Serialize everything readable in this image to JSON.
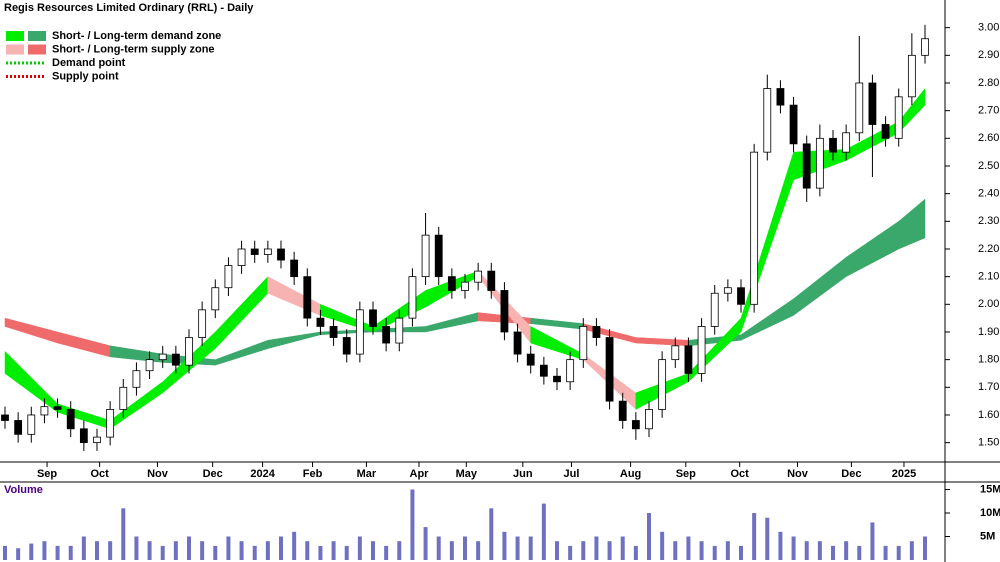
{
  "chart_data": {
    "type": "candlestick",
    "title": "Regis Resources Limited Ordinary (RRL) - Daily",
    "legend": [
      {
        "label": "Short- / Long-term demand zone",
        "colors": [
          "#00ee00",
          "#3aa86a"
        ],
        "style": "swatch"
      },
      {
        "label": "Short- / Long-term supply zone",
        "colors": [
          "#f7b2b2",
          "#ef6b6b"
        ],
        "style": "swatch"
      },
      {
        "label": "Demand point",
        "colors": [
          "#00cc00"
        ],
        "style": "dotted"
      },
      {
        "label": "Supply point",
        "colors": [
          "#dd0000"
        ],
        "style": "dotted"
      }
    ],
    "x": [
      0,
      1,
      2,
      3,
      4,
      5,
      6,
      7,
      8,
      9,
      10,
      11,
      12,
      13,
      14,
      15,
      16,
      17,
      18,
      19,
      20,
      21,
      22,
      23,
      24,
      25,
      26,
      27,
      28,
      29,
      30,
      31,
      32,
      33,
      34,
      35,
      36,
      37,
      38,
      39,
      40,
      41,
      42,
      43,
      44,
      45,
      46,
      47,
      48,
      49,
      50,
      51,
      52,
      53,
      54,
      55,
      56,
      57,
      58,
      59,
      60,
      61,
      62,
      63,
      64,
      65,
      66,
      67,
      68,
      69,
      70
    ],
    "open": [
      1.6,
      1.58,
      1.53,
      1.6,
      1.63,
      1.62,
      1.55,
      1.5,
      1.52,
      1.62,
      1.7,
      1.76,
      1.8,
      1.82,
      1.78,
      1.88,
      1.98,
      2.06,
      2.14,
      2.2,
      2.18,
      2.2,
      2.16,
      2.1,
      1.95,
      1.92,
      1.88,
      1.82,
      1.98,
      1.92,
      1.86,
      1.95,
      2.1,
      2.25,
      2.1,
      2.05,
      2.08,
      2.12,
      2.05,
      1.9,
      1.82,
      1.78,
      1.74,
      1.72,
      1.8,
      1.92,
      1.88,
      1.65,
      1.58,
      1.55,
      1.62,
      1.8,
      1.85,
      1.75,
      1.92,
      2.04,
      2.06,
      2.0,
      2.55,
      2.78,
      2.72,
      2.58,
      2.42,
      2.6,
      2.55,
      2.62,
      2.8,
      2.65,
      2.6,
      2.75,
      2.9
    ],
    "high": [
      1.63,
      1.61,
      1.63,
      1.66,
      1.66,
      1.65,
      1.58,
      1.55,
      1.65,
      1.73,
      1.79,
      1.83,
      1.85,
      1.85,
      1.91,
      2.01,
      2.09,
      2.17,
      2.23,
      2.23,
      2.23,
      2.23,
      2.19,
      2.13,
      1.98,
      1.95,
      1.91,
      2.01,
      2.01,
      1.95,
      1.98,
      2.13,
      2.33,
      2.28,
      2.13,
      2.11,
      2.15,
      2.15,
      2.08,
      1.93,
      1.85,
      1.81,
      1.77,
      1.83,
      1.95,
      1.95,
      1.91,
      1.68,
      1.61,
      1.65,
      1.83,
      1.88,
      1.88,
      1.95,
      2.07,
      2.09,
      2.09,
      2.58,
      2.83,
      2.81,
      2.75,
      2.61,
      2.65,
      2.63,
      2.65,
      2.97,
      2.83,
      2.68,
      2.78,
      2.98,
      3.01
    ],
    "low": [
      1.55,
      1.5,
      1.5,
      1.57,
      1.59,
      1.52,
      1.47,
      1.47,
      1.49,
      1.59,
      1.67,
      1.73,
      1.77,
      1.75,
      1.75,
      1.85,
      1.95,
      2.03,
      2.11,
      2.15,
      2.15,
      2.13,
      2.07,
      1.92,
      1.89,
      1.85,
      1.79,
      1.79,
      1.89,
      1.83,
      1.83,
      1.92,
      2.07,
      2.07,
      2.02,
      2.02,
      2.05,
      2.02,
      1.87,
      1.79,
      1.75,
      1.71,
      1.69,
      1.69,
      1.77,
      1.85,
      1.62,
      1.55,
      1.51,
      1.52,
      1.59,
      1.77,
      1.72,
      1.72,
      1.89,
      2.01,
      1.97,
      1.97,
      2.52,
      2.69,
      2.55,
      2.37,
      2.39,
      2.52,
      2.52,
      2.59,
      2.46,
      2.57,
      2.57,
      2.72,
      2.87
    ],
    "close": [
      1.58,
      1.53,
      1.6,
      1.63,
      1.62,
      1.55,
      1.5,
      1.52,
      1.62,
      1.7,
      1.76,
      1.8,
      1.82,
      1.78,
      1.88,
      1.98,
      2.06,
      2.14,
      2.2,
      2.18,
      2.2,
      2.16,
      2.1,
      1.95,
      1.92,
      1.88,
      1.82,
      1.98,
      1.92,
      1.86,
      1.95,
      2.1,
      2.25,
      2.1,
      2.05,
      2.08,
      2.12,
      2.05,
      1.9,
      1.82,
      1.78,
      1.74,
      1.72,
      1.8,
      1.92,
      1.88,
      1.65,
      1.58,
      1.55,
      1.62,
      1.8,
      1.85,
      1.75,
      1.92,
      2.04,
      2.06,
      2.0,
      2.55,
      2.78,
      2.72,
      2.58,
      2.42,
      2.6,
      2.55,
      2.62,
      2.8,
      2.65,
      2.6,
      2.75,
      2.9,
      2.96
    ],
    "up_color": "#ffffff",
    "down_color": "#000000",
    "zones": [
      {
        "x": [
          0,
          4,
          8,
          12,
          16,
          20,
          24,
          28,
          32,
          36,
          40,
          44,
          48,
          52,
          56,
          60,
          64,
          68,
          70
        ],
        "upper": [
          1.95,
          1.9,
          1.85,
          1.82,
          1.8,
          1.87,
          1.9,
          1.91,
          1.92,
          1.97,
          1.95,
          1.93,
          1.88,
          1.87,
          1.89,
          2.02,
          2.17,
          2.3,
          2.38
        ],
        "lower": [
          1.92,
          1.86,
          1.81,
          1.79,
          1.78,
          1.84,
          1.89,
          1.9,
          1.9,
          1.94,
          1.93,
          1.91,
          1.86,
          1.85,
          1.87,
          1.96,
          2.1,
          2.2,
          2.24
        ],
        "demand_color": "#3aa86a",
        "supply_color": "#ef6b6b"
      },
      {
        "x": [
          0,
          4,
          8,
          12,
          16,
          20,
          24,
          28,
          32,
          36,
          40,
          44,
          48,
          52,
          56,
          60,
          64,
          68,
          70
        ],
        "upper": [
          1.83,
          1.64,
          1.58,
          1.72,
          1.9,
          2.1,
          2.0,
          1.92,
          2.05,
          2.12,
          1.92,
          1.82,
          1.68,
          1.75,
          1.95,
          2.55,
          2.56,
          2.66,
          2.78
        ],
        "lower": [
          1.75,
          1.61,
          1.55,
          1.68,
          1.84,
          2.04,
          1.96,
          1.9,
          1.99,
          2.1,
          1.86,
          1.8,
          1.62,
          1.72,
          1.9,
          2.45,
          2.52,
          2.62,
          2.72
        ],
        "demand_color": "#00ee00",
        "supply_color": "#f7b2b2"
      }
    ],
    "ylim": [
      1.43,
      3.1
    ],
    "yticks": [
      {
        "value": 1.5,
        "label": "1.50"
      },
      {
        "value": 1.6,
        "label": "1.60"
      },
      {
        "value": 1.7,
        "label": "1.70"
      },
      {
        "value": 1.8,
        "label": "1.80"
      },
      {
        "value": 1.9,
        "label": "1.90"
      },
      {
        "value": 2,
        "label": "2.00"
      },
      {
        "value": 2.1,
        "label": "2.10"
      },
      {
        "value": 2.2,
        "label": "2.20"
      },
      {
        "value": 2.3,
        "label": "2.30"
      },
      {
        "value": 2.4,
        "label": "2.40"
      },
      {
        "value": 2.5,
        "label": "2.50"
      },
      {
        "value": 2.6,
        "label": "2.60"
      },
      {
        "value": 2.7,
        "label": "2.70"
      },
      {
        "value": 2.8,
        "label": "2.80"
      },
      {
        "value": 2.9,
        "label": "2.90"
      },
      {
        "value": 3,
        "label": "3.00"
      }
    ],
    "xlim": [
      0,
      70
    ],
    "xticks": [
      {
        "value": 3.2,
        "label": "Sep"
      },
      {
        "value": 7.2,
        "label": "Oct"
      },
      {
        "value": 11.6,
        "label": "Nov"
      },
      {
        "value": 15.8,
        "label": "Dec"
      },
      {
        "value": 19.6,
        "label": "2024"
      },
      {
        "value": 23.4,
        "label": "Feb"
      },
      {
        "value": 27.5,
        "label": "Mar"
      },
      {
        "value": 31.5,
        "label": "Apr"
      },
      {
        "value": 35.1,
        "label": "May"
      },
      {
        "value": 39.4,
        "label": "Jun"
      },
      {
        "value": 43.1,
        "label": "Jul"
      },
      {
        "value": 47.6,
        "label": "Aug"
      },
      {
        "value": 51.8,
        "label": "Sep"
      },
      {
        "value": 55.9,
        "label": "Oct"
      },
      {
        "value": 60.3,
        "label": "Nov"
      },
      {
        "value": 64.4,
        "label": "Dec"
      },
      {
        "value": 68.4,
        "label": "2025"
      }
    ],
    "volume": {
      "label": "Volume",
      "color": "#7070c0",
      "values": [
        3,
        2.5,
        3.5,
        4,
        3,
        3,
        5,
        4,
        4,
        11,
        5,
        4,
        3,
        4,
        5,
        4,
        3,
        5,
        4,
        3,
        4,
        5,
        6,
        4,
        3,
        4,
        3,
        5,
        4,
        3,
        4,
        15,
        7,
        5,
        4,
        5,
        4,
        11,
        6,
        5,
        5,
        12,
        4,
        3,
        4,
        5,
        4,
        5,
        3,
        10,
        6,
        4,
        5,
        4,
        3,
        4,
        3,
        10,
        9,
        6,
        5,
        4,
        4,
        3,
        4,
        3,
        8,
        3,
        3,
        4,
        5
      ],
      "ylim": [
        0,
        16.6
      ],
      "yticks": [
        {
          "value": 5,
          "label": "5M"
        },
        {
          "value": 10,
          "label": "10M"
        },
        {
          "value": 15,
          "label": "15M"
        }
      ]
    }
  }
}
